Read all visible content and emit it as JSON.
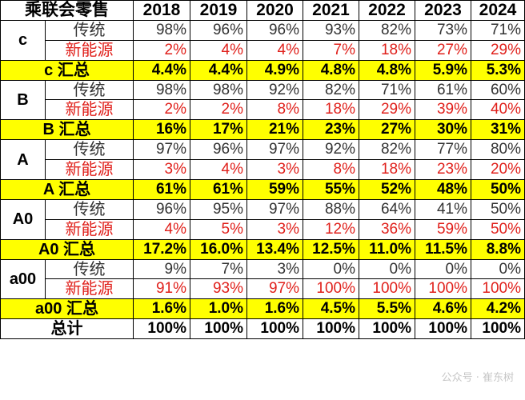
{
  "header": {
    "title": "乘联会零售",
    "years": [
      "2018",
      "2019",
      "2020",
      "2021",
      "2022",
      "2023",
      "2024"
    ]
  },
  "labels": {
    "traditional": "传统",
    "nev": "新能源"
  },
  "segments": [
    {
      "name": "c",
      "traditional": [
        "98%",
        "96%",
        "96%",
        "93%",
        "82%",
        "73%",
        "71%"
      ],
      "nev": [
        "2%",
        "4%",
        "4%",
        "7%",
        "18%",
        "27%",
        "29%"
      ],
      "summary_label": "c 汇总",
      "summary": [
        "4.4%",
        "4.4%",
        "4.9%",
        "4.8%",
        "4.8%",
        "5.9%",
        "5.3%"
      ]
    },
    {
      "name": "B",
      "traditional": [
        "98%",
        "98%",
        "92%",
        "82%",
        "71%",
        "61%",
        "60%"
      ],
      "nev": [
        "2%",
        "2%",
        "8%",
        "18%",
        "29%",
        "39%",
        "40%"
      ],
      "summary_label": "B 汇总",
      "summary": [
        "16%",
        "17%",
        "21%",
        "23%",
        "27%",
        "30%",
        "31%"
      ]
    },
    {
      "name": "A",
      "traditional": [
        "97%",
        "96%",
        "97%",
        "92%",
        "82%",
        "77%",
        "80%"
      ],
      "nev": [
        "3%",
        "4%",
        "3%",
        "8%",
        "18%",
        "23%",
        "20%"
      ],
      "summary_label": "A 汇总",
      "summary": [
        "61%",
        "61%",
        "59%",
        "55%",
        "52%",
        "48%",
        "50%"
      ]
    },
    {
      "name": "A0",
      "traditional": [
        "96%",
        "95%",
        "97%",
        "88%",
        "64%",
        "41%",
        "50%"
      ],
      "nev": [
        "4%",
        "5%",
        "3%",
        "12%",
        "36%",
        "59%",
        "50%"
      ],
      "summary_label": "A0 汇总",
      "summary": [
        "17.2%",
        "16.0%",
        "13.4%",
        "12.5%",
        "11.0%",
        "11.5%",
        "8.8%"
      ]
    },
    {
      "name": "a00",
      "traditional": [
        "9%",
        "7%",
        "3%",
        "0%",
        "0%",
        "0%",
        "0%"
      ],
      "nev": [
        "91%",
        "93%",
        "97%",
        "100%",
        "100%",
        "100%",
        "100%"
      ],
      "summary_label": "a00 汇总",
      "summary": [
        "1.6%",
        "1.0%",
        "1.6%",
        "4.5%",
        "5.5%",
        "4.6%",
        "4.2%"
      ]
    }
  ],
  "total": {
    "label": "总计",
    "values": [
      "100%",
      "100%",
      "100%",
      "100%",
      "100%",
      "100%",
      "100%"
    ]
  },
  "watermark": "公众号 · 崔东树",
  "colors": {
    "summary_bg": "#ffff00",
    "nev_text": "#e0201b",
    "border": "#000000"
  }
}
